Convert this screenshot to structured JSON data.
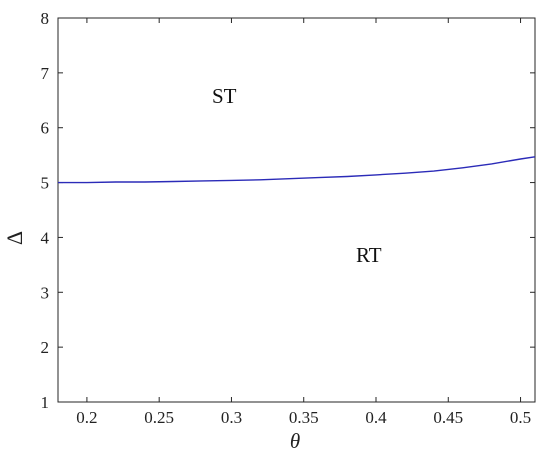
{
  "chart_data": {
    "type": "line",
    "title": "",
    "xlabel": "θ",
    "ylabel": "Δ",
    "xlim": [
      0.18,
      0.51
    ],
    "ylim": [
      1,
      8
    ],
    "x_ticks": [
      "0.2",
      "0.25",
      "0.3",
      "0.35",
      "0.4",
      "0.45",
      "0.5"
    ],
    "y_ticks": [
      "1",
      "2",
      "3",
      "4",
      "5",
      "6",
      "7",
      "8"
    ],
    "grid": false,
    "line_color": "#2b2bb8",
    "series": [
      {
        "x": [
          0.18,
          0.2,
          0.22,
          0.24,
          0.26,
          0.28,
          0.3,
          0.32,
          0.34,
          0.36,
          0.38,
          0.4,
          0.42,
          0.44,
          0.46,
          0.48,
          0.5,
          0.51
        ],
        "values": [
          5.0,
          5.0,
          5.01,
          5.01,
          5.02,
          5.03,
          5.04,
          5.05,
          5.07,
          5.09,
          5.11,
          5.14,
          5.17,
          5.21,
          5.27,
          5.34,
          5.43,
          5.47
        ]
      }
    ],
    "annotations": [
      {
        "text": "ST",
        "x": 0.295,
        "y": 6.45
      },
      {
        "text": "RT",
        "x": 0.395,
        "y": 3.55
      }
    ]
  }
}
